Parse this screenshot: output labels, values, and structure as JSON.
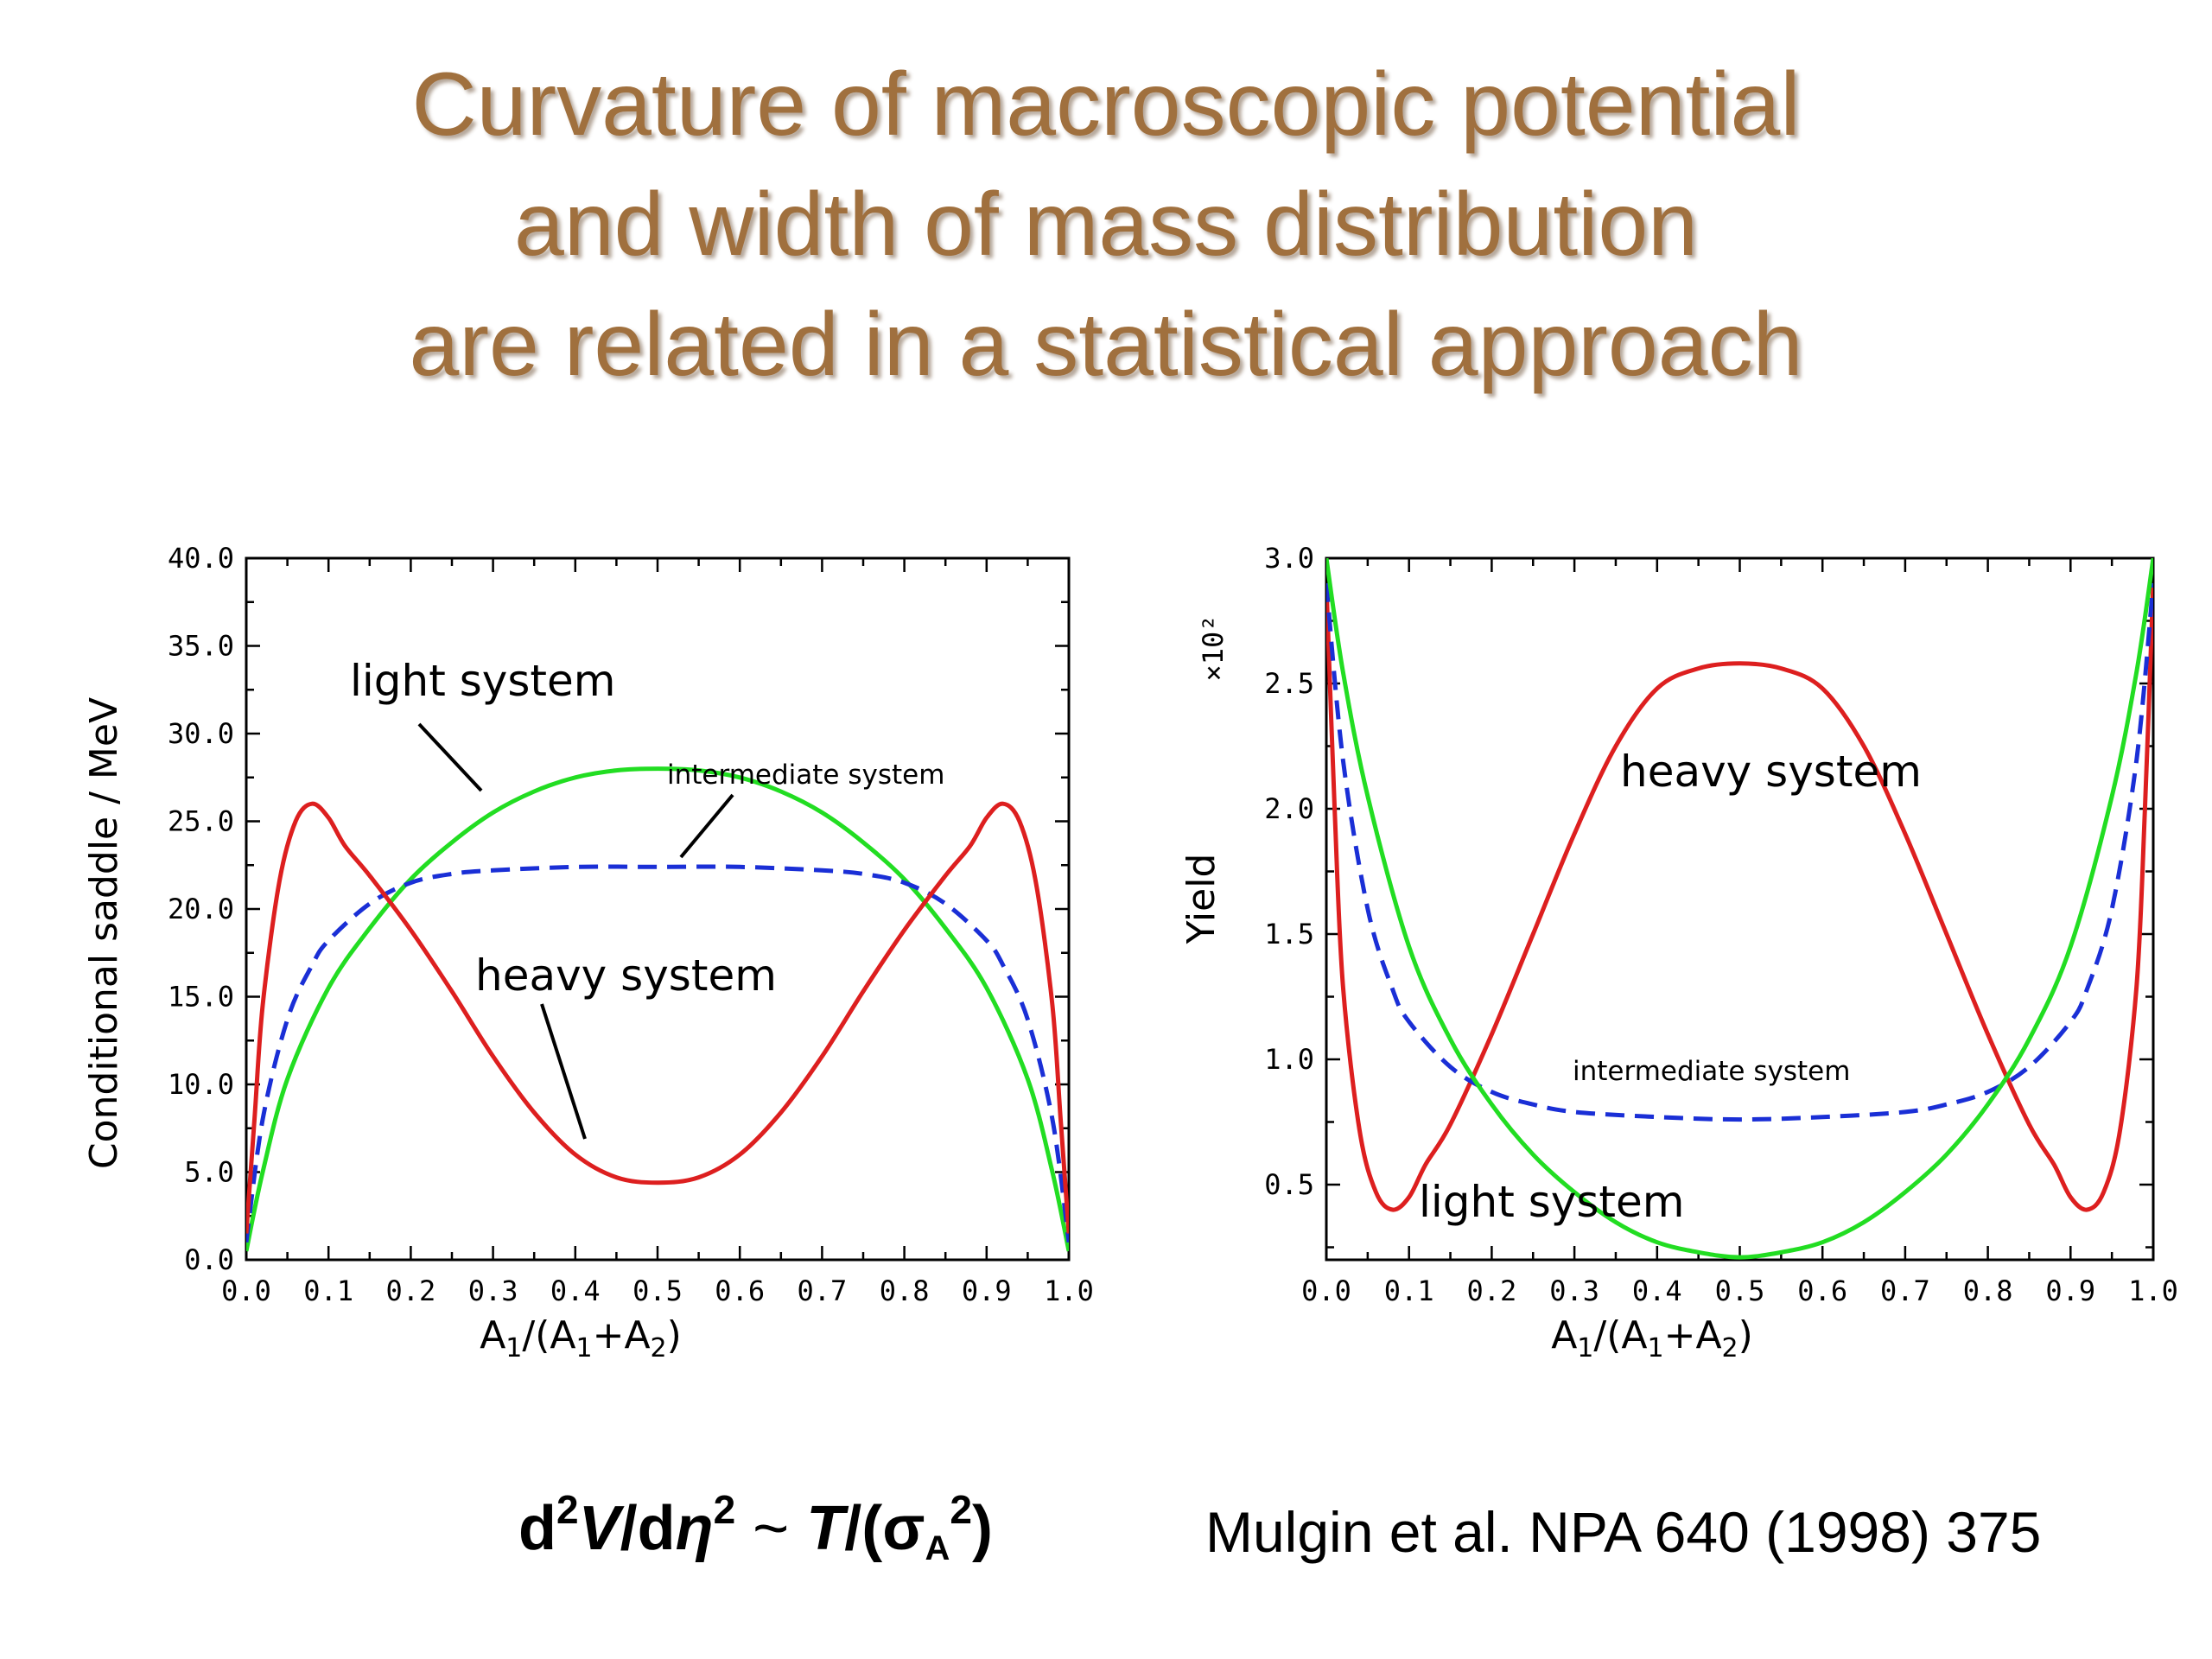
{
  "title": {
    "lines": [
      "Curvature of macroscopic potential",
      "and width of mass distribution",
      "are related in a statistical approach"
    ]
  },
  "chart_data": [
    {
      "type": "line",
      "xlabel": "A1/(A1+A2)",
      "ylabel": "Conditional saddle / MeV",
      "xlim": [
        0,
        1
      ],
      "ylim": [
        0,
        40
      ],
      "xticks": [
        "0.0",
        "0.1",
        "0.2",
        "0.3",
        "0.4",
        "0.5",
        "0.6",
        "0.7",
        "0.8",
        "0.9",
        "1.0"
      ],
      "yticks": [
        "0.0",
        "5.0",
        "10.0",
        "15.0",
        "20.0",
        "25.0",
        "30.0",
        "35.0",
        "40.0"
      ],
      "grid": false,
      "annotations": [
        "light system",
        "intermediate system",
        "heavy system"
      ],
      "series": [
        {
          "name": "light system",
          "color": "#22dd22",
          "dash": "solid",
          "x": [
            0,
            0.02,
            0.05,
            0.1,
            0.15,
            0.2,
            0.25,
            0.3,
            0.35,
            0.4,
            0.45,
            0.5,
            0.55,
            0.6,
            0.65,
            0.7,
            0.75,
            0.8,
            0.85,
            0.9,
            0.95,
            0.98,
            1.0
          ],
          "y": [
            0.5,
            5.0,
            10.3,
            15.5,
            18.9,
            21.7,
            23.8,
            25.5,
            26.7,
            27.5,
            27.9,
            28.0,
            27.9,
            27.5,
            26.7,
            25.5,
            23.8,
            21.7,
            18.9,
            15.5,
            10.3,
            5.0,
            0.5
          ]
        },
        {
          "name": "intermediate system",
          "color": "#1a2fd6",
          "dash": "dashed",
          "x": [
            0,
            0.02,
            0.05,
            0.08,
            0.1,
            0.15,
            0.2,
            0.25,
            0.3,
            0.4,
            0.5,
            0.6,
            0.7,
            0.75,
            0.8,
            0.85,
            0.9,
            0.92,
            0.95,
            0.98,
            1.0
          ],
          "y": [
            1.0,
            8.0,
            13.7,
            16.8,
            18.2,
            20.3,
            21.5,
            22.0,
            22.2,
            22.4,
            22.4,
            22.4,
            22.2,
            22.0,
            21.5,
            20.3,
            18.2,
            16.8,
            13.7,
            8.0,
            1.0
          ]
        },
        {
          "name": "heavy system",
          "color": "#dd1f1f",
          "dash": "solid",
          "x": [
            0,
            0.01,
            0.02,
            0.04,
            0.06,
            0.08,
            0.1,
            0.12,
            0.15,
            0.2,
            0.25,
            0.3,
            0.35,
            0.4,
            0.45,
            0.5,
            0.55,
            0.6,
            0.65,
            0.7,
            0.75,
            0.8,
            0.85,
            0.88,
            0.9,
            0.92,
            0.94,
            0.96,
            0.98,
            0.99,
            1.0
          ],
          "y": [
            1.5,
            8.0,
            14.5,
            21.5,
            25.0,
            26.0,
            25.2,
            23.6,
            21.9,
            18.8,
            15.3,
            11.6,
            8.4,
            6.0,
            4.7,
            4.4,
            4.7,
            6.0,
            8.4,
            11.6,
            15.3,
            18.8,
            21.9,
            23.6,
            25.2,
            26.0,
            25.0,
            21.5,
            14.5,
            8.0,
            1.5
          ]
        }
      ]
    },
    {
      "type": "line",
      "xlabel": "A1/(A1+A2)",
      "ylabel": "Yield",
      "scale_label": "×10²",
      "xlim": [
        0,
        1
      ],
      "ylim": [
        0.2,
        3.0
      ],
      "xticks": [
        "0.0",
        "0.1",
        "0.2",
        "0.3",
        "0.4",
        "0.5",
        "0.6",
        "0.7",
        "0.8",
        "0.9",
        "1.0"
      ],
      "yticks": [
        "0.5",
        "1.0",
        "1.5",
        "2.0",
        "2.5",
        "3.0"
      ],
      "grid": false,
      "annotations": [
        "heavy system",
        "intermediate system",
        "light system"
      ],
      "series": [
        {
          "name": "heavy system",
          "color": "#dd1f1f",
          "dash": "solid",
          "x": [
            0,
            0.01,
            0.02,
            0.04,
            0.06,
            0.08,
            0.1,
            0.12,
            0.15,
            0.2,
            0.25,
            0.3,
            0.35,
            0.4,
            0.45,
            0.5,
            0.55,
            0.6,
            0.65,
            0.7,
            0.75,
            0.8,
            0.85,
            0.88,
            0.9,
            0.92,
            0.94,
            0.96,
            0.98,
            0.99,
            1.0
          ],
          "y": [
            2.9,
            2.0,
            1.3,
            0.72,
            0.47,
            0.4,
            0.45,
            0.58,
            0.74,
            1.1,
            1.5,
            1.9,
            2.25,
            2.48,
            2.56,
            2.58,
            2.56,
            2.48,
            2.25,
            1.9,
            1.5,
            1.1,
            0.74,
            0.58,
            0.45,
            0.4,
            0.47,
            0.72,
            1.3,
            2.0,
            2.9
          ]
        },
        {
          "name": "intermediate system",
          "color": "#1a2fd6",
          "dash": "dashed",
          "x": [
            0,
            0.02,
            0.05,
            0.08,
            0.1,
            0.15,
            0.2,
            0.25,
            0.3,
            0.4,
            0.5,
            0.6,
            0.7,
            0.75,
            0.8,
            0.85,
            0.9,
            0.92,
            0.95,
            0.98,
            1.0
          ],
          "y": [
            2.9,
            2.2,
            1.6,
            1.28,
            1.15,
            0.97,
            0.87,
            0.82,
            0.79,
            0.77,
            0.76,
            0.77,
            0.79,
            0.82,
            0.87,
            0.97,
            1.15,
            1.28,
            1.6,
            2.2,
            2.9
          ]
        },
        {
          "name": "light system",
          "color": "#22dd22",
          "dash": "solid",
          "x": [
            0,
            0.02,
            0.05,
            0.1,
            0.15,
            0.2,
            0.25,
            0.3,
            0.35,
            0.4,
            0.45,
            0.5,
            0.55,
            0.6,
            0.65,
            0.7,
            0.75,
            0.8,
            0.85,
            0.9,
            0.95,
            0.98,
            1.0
          ],
          "y": [
            3.0,
            2.55,
            2.05,
            1.45,
            1.08,
            0.82,
            0.62,
            0.47,
            0.35,
            0.27,
            0.23,
            0.21,
            0.23,
            0.27,
            0.35,
            0.47,
            0.62,
            0.82,
            1.08,
            1.45,
            2.05,
            2.55,
            3.0
          ]
        }
      ]
    }
  ],
  "formula": {
    "text_d": "d",
    "sup_2a": "2",
    "text_V": "V",
    "text_slash_d": "/d",
    "text_eta": "η",
    "sup_2b": "2",
    "text_tilde": " ~ ",
    "text_T": "T",
    "text_open": "/(σ",
    "sub_A": "A",
    "sup_2c": "2",
    "text_close": ")"
  },
  "reference": "Mulgin et al. NPA 640 (1998) 375"
}
